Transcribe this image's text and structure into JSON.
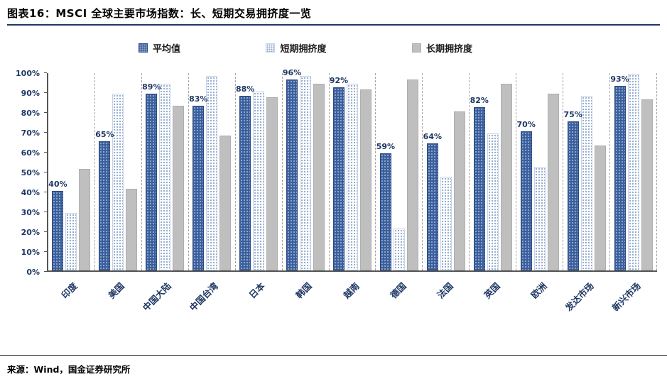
{
  "header": {
    "title": "图表16：MSCI 全球主要市场指数：长、短期交易拥挤度一览"
  },
  "footer": {
    "source": "来源：Wind，国金证券研究所"
  },
  "colors": {
    "accent_navy": "#1F3864",
    "avg_bar": "#3A5F9E",
    "short_bar_dot": "#8FA9CE",
    "long_bar": "#BFBFBF",
    "separator": "#A6A6A6"
  },
  "chart_data": {
    "type": "bar",
    "title": "MSCI 全球主要市场指数：长、短期交易拥挤度一览",
    "categories": [
      "印度",
      "美国",
      "中国大陆",
      "中国台湾",
      "日本",
      "韩国",
      "越南",
      "德国",
      "法国",
      "英国",
      "欧洲",
      "发达市场",
      "新兴市场"
    ],
    "series": [
      {
        "name": "平均值",
        "values": [
          40,
          65,
          89,
          83,
          88,
          96,
          92,
          59,
          64,
          82,
          70,
          75,
          93
        ],
        "data_labels": [
          "40%",
          "65%",
          "89%",
          "83%",
          "88%",
          "96%",
          "92%",
          "59%",
          "64%",
          "82%",
          "70%",
          "75%",
          "93%"
        ]
      },
      {
        "name": "短期拥挤度",
        "values": [
          29,
          89,
          94,
          98,
          90,
          98,
          94,
          21,
          47,
          69,
          52,
          88,
          99
        ]
      },
      {
        "name": "长期拥挤度",
        "values": [
          51,
          41,
          83,
          68,
          87,
          94,
          91,
          96,
          80,
          94,
          89,
          63,
          86
        ]
      }
    ],
    "ylim": [
      0,
      100
    ],
    "yticks": [
      "0%",
      "10%",
      "20%",
      "30%",
      "40%",
      "50%",
      "60%",
      "70%",
      "80%",
      "90%",
      "100%"
    ],
    "legend_position": "top",
    "grid": "vertical-dashed-group-separators",
    "xlabel": "",
    "ylabel": ""
  }
}
